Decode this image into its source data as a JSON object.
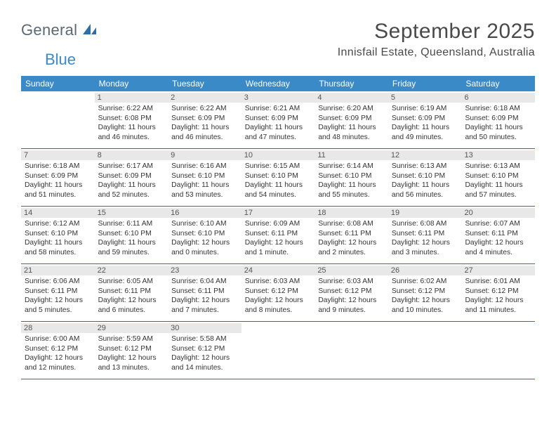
{
  "logo": {
    "general": "General",
    "blue": "Blue"
  },
  "title": "September 2025",
  "location": "Innisfail Estate, Queensland, Australia",
  "colors": {
    "header_bg": "#3a8ac8",
    "header_text": "#ffffff",
    "daynum_bg": "#e8e8e8",
    "rule": "#3a6a8a",
    "logo_gray": "#5a6a72",
    "logo_blue": "#3a8ac8"
  },
  "weekdays": [
    "Sunday",
    "Monday",
    "Tuesday",
    "Wednesday",
    "Thursday",
    "Friday",
    "Saturday"
  ],
  "weeks": [
    [
      {
        "blank": true
      },
      {
        "n": "1",
        "sr": "Sunrise: 6:22 AM",
        "ss": "Sunset: 6:08 PM",
        "dl1": "Daylight: 11 hours",
        "dl2": "and 46 minutes."
      },
      {
        "n": "2",
        "sr": "Sunrise: 6:22 AM",
        "ss": "Sunset: 6:09 PM",
        "dl1": "Daylight: 11 hours",
        "dl2": "and 46 minutes."
      },
      {
        "n": "3",
        "sr": "Sunrise: 6:21 AM",
        "ss": "Sunset: 6:09 PM",
        "dl1": "Daylight: 11 hours",
        "dl2": "and 47 minutes."
      },
      {
        "n": "4",
        "sr": "Sunrise: 6:20 AM",
        "ss": "Sunset: 6:09 PM",
        "dl1": "Daylight: 11 hours",
        "dl2": "and 48 minutes."
      },
      {
        "n": "5",
        "sr": "Sunrise: 6:19 AM",
        "ss": "Sunset: 6:09 PM",
        "dl1": "Daylight: 11 hours",
        "dl2": "and 49 minutes."
      },
      {
        "n": "6",
        "sr": "Sunrise: 6:18 AM",
        "ss": "Sunset: 6:09 PM",
        "dl1": "Daylight: 11 hours",
        "dl2": "and 50 minutes."
      }
    ],
    [
      {
        "n": "7",
        "sr": "Sunrise: 6:18 AM",
        "ss": "Sunset: 6:09 PM",
        "dl1": "Daylight: 11 hours",
        "dl2": "and 51 minutes."
      },
      {
        "n": "8",
        "sr": "Sunrise: 6:17 AM",
        "ss": "Sunset: 6:09 PM",
        "dl1": "Daylight: 11 hours",
        "dl2": "and 52 minutes."
      },
      {
        "n": "9",
        "sr": "Sunrise: 6:16 AM",
        "ss": "Sunset: 6:10 PM",
        "dl1": "Daylight: 11 hours",
        "dl2": "and 53 minutes."
      },
      {
        "n": "10",
        "sr": "Sunrise: 6:15 AM",
        "ss": "Sunset: 6:10 PM",
        "dl1": "Daylight: 11 hours",
        "dl2": "and 54 minutes."
      },
      {
        "n": "11",
        "sr": "Sunrise: 6:14 AM",
        "ss": "Sunset: 6:10 PM",
        "dl1": "Daylight: 11 hours",
        "dl2": "and 55 minutes."
      },
      {
        "n": "12",
        "sr": "Sunrise: 6:13 AM",
        "ss": "Sunset: 6:10 PM",
        "dl1": "Daylight: 11 hours",
        "dl2": "and 56 minutes."
      },
      {
        "n": "13",
        "sr": "Sunrise: 6:13 AM",
        "ss": "Sunset: 6:10 PM",
        "dl1": "Daylight: 11 hours",
        "dl2": "and 57 minutes."
      }
    ],
    [
      {
        "n": "14",
        "sr": "Sunrise: 6:12 AM",
        "ss": "Sunset: 6:10 PM",
        "dl1": "Daylight: 11 hours",
        "dl2": "and 58 minutes."
      },
      {
        "n": "15",
        "sr": "Sunrise: 6:11 AM",
        "ss": "Sunset: 6:10 PM",
        "dl1": "Daylight: 11 hours",
        "dl2": "and 59 minutes."
      },
      {
        "n": "16",
        "sr": "Sunrise: 6:10 AM",
        "ss": "Sunset: 6:10 PM",
        "dl1": "Daylight: 12 hours",
        "dl2": "and 0 minutes."
      },
      {
        "n": "17",
        "sr": "Sunrise: 6:09 AM",
        "ss": "Sunset: 6:11 PM",
        "dl1": "Daylight: 12 hours",
        "dl2": "and 1 minute."
      },
      {
        "n": "18",
        "sr": "Sunrise: 6:08 AM",
        "ss": "Sunset: 6:11 PM",
        "dl1": "Daylight: 12 hours",
        "dl2": "and 2 minutes."
      },
      {
        "n": "19",
        "sr": "Sunrise: 6:08 AM",
        "ss": "Sunset: 6:11 PM",
        "dl1": "Daylight: 12 hours",
        "dl2": "and 3 minutes."
      },
      {
        "n": "20",
        "sr": "Sunrise: 6:07 AM",
        "ss": "Sunset: 6:11 PM",
        "dl1": "Daylight: 12 hours",
        "dl2": "and 4 minutes."
      }
    ],
    [
      {
        "n": "21",
        "sr": "Sunrise: 6:06 AM",
        "ss": "Sunset: 6:11 PM",
        "dl1": "Daylight: 12 hours",
        "dl2": "and 5 minutes."
      },
      {
        "n": "22",
        "sr": "Sunrise: 6:05 AM",
        "ss": "Sunset: 6:11 PM",
        "dl1": "Daylight: 12 hours",
        "dl2": "and 6 minutes."
      },
      {
        "n": "23",
        "sr": "Sunrise: 6:04 AM",
        "ss": "Sunset: 6:11 PM",
        "dl1": "Daylight: 12 hours",
        "dl2": "and 7 minutes."
      },
      {
        "n": "24",
        "sr": "Sunrise: 6:03 AM",
        "ss": "Sunset: 6:12 PM",
        "dl1": "Daylight: 12 hours",
        "dl2": "and 8 minutes."
      },
      {
        "n": "25",
        "sr": "Sunrise: 6:03 AM",
        "ss": "Sunset: 6:12 PM",
        "dl1": "Daylight: 12 hours",
        "dl2": "and 9 minutes."
      },
      {
        "n": "26",
        "sr": "Sunrise: 6:02 AM",
        "ss": "Sunset: 6:12 PM",
        "dl1": "Daylight: 12 hours",
        "dl2": "and 10 minutes."
      },
      {
        "n": "27",
        "sr": "Sunrise: 6:01 AM",
        "ss": "Sunset: 6:12 PM",
        "dl1": "Daylight: 12 hours",
        "dl2": "and 11 minutes."
      }
    ],
    [
      {
        "n": "28",
        "sr": "Sunrise: 6:00 AM",
        "ss": "Sunset: 6:12 PM",
        "dl1": "Daylight: 12 hours",
        "dl2": "and 12 minutes."
      },
      {
        "n": "29",
        "sr": "Sunrise: 5:59 AM",
        "ss": "Sunset: 6:12 PM",
        "dl1": "Daylight: 12 hours",
        "dl2": "and 13 minutes."
      },
      {
        "n": "30",
        "sr": "Sunrise: 5:58 AM",
        "ss": "Sunset: 6:12 PM",
        "dl1": "Daylight: 12 hours",
        "dl2": "and 14 minutes."
      },
      {
        "blank": true
      },
      {
        "blank": true
      },
      {
        "blank": true
      },
      {
        "blank": true
      }
    ]
  ]
}
